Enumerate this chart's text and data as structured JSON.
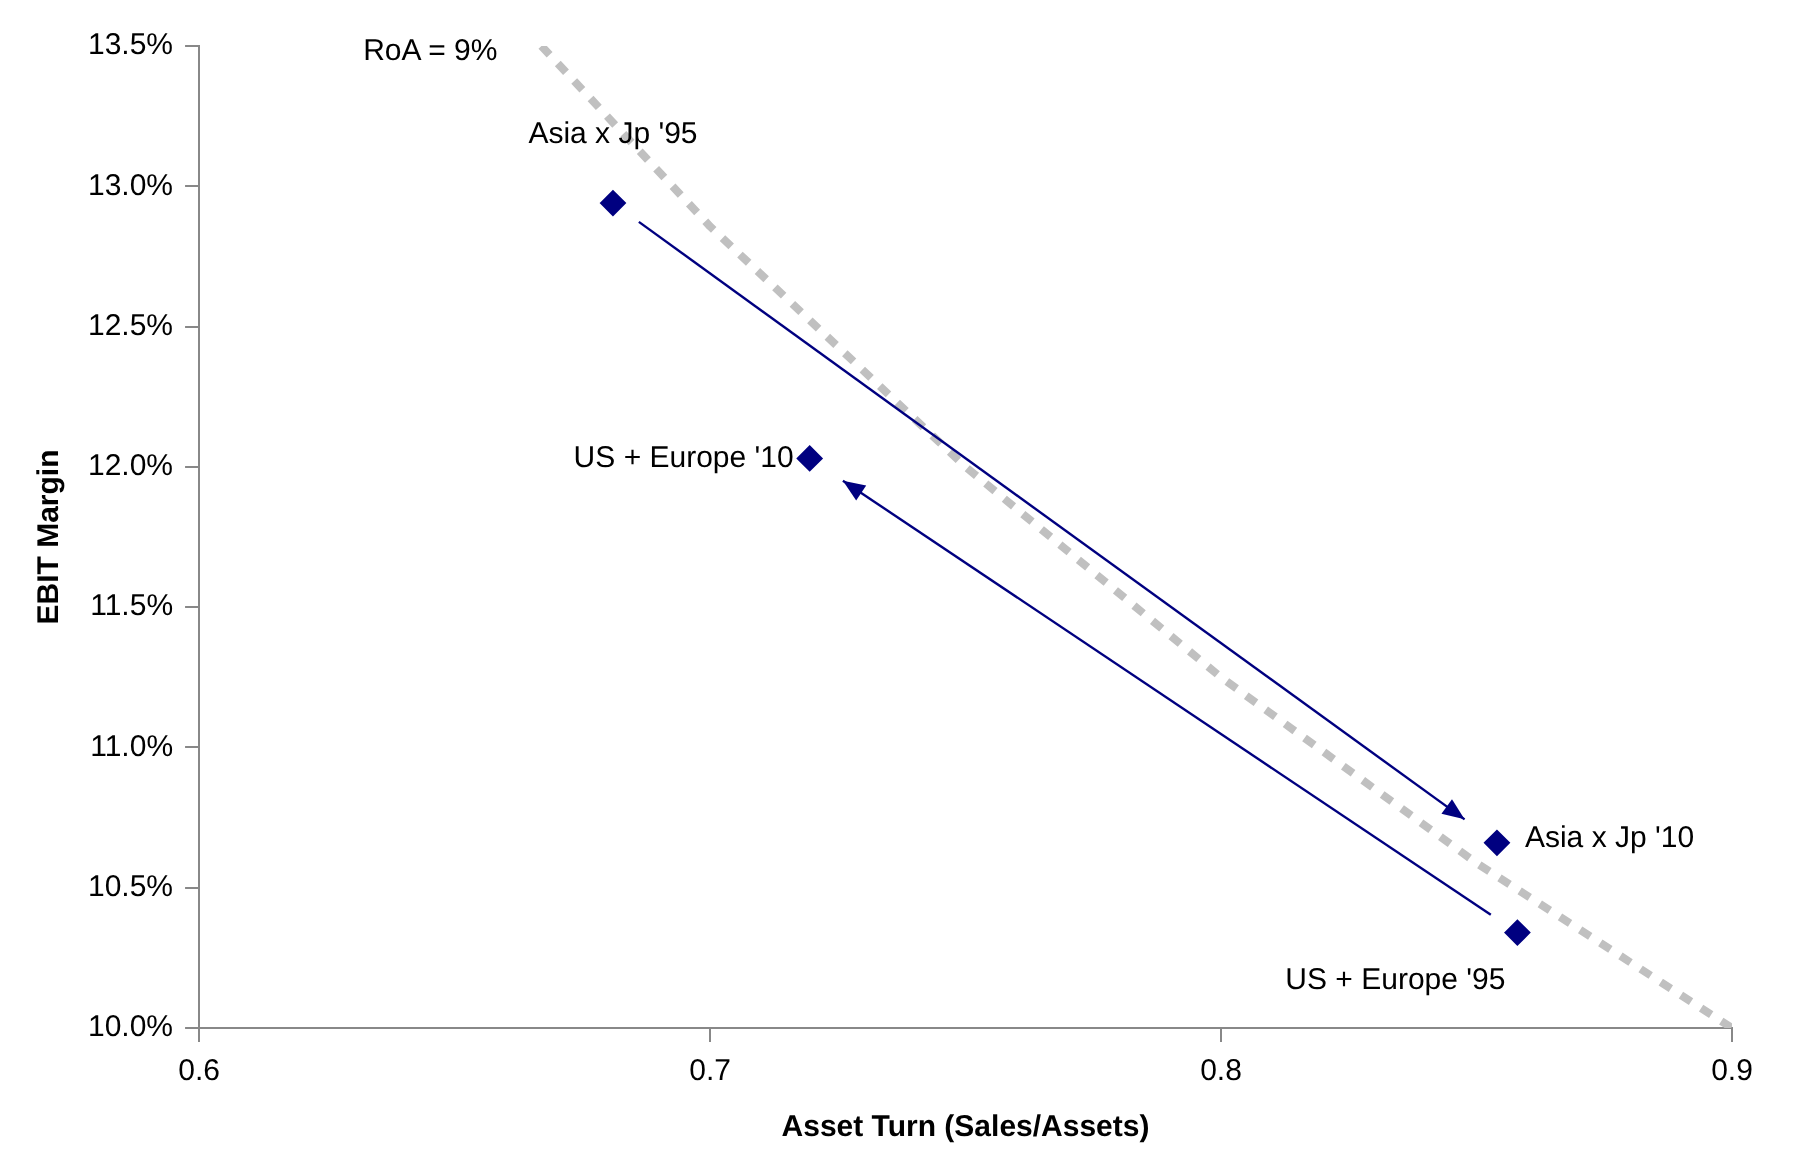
{
  "chart_data": {
    "type": "scatter",
    "xlabel": "Asset Turn (Sales/Assets)",
    "ylabel": "EBIT Margin",
    "series": [
      {
        "type": "scatter",
        "color": "#000080",
        "marker": "diamond",
        "x": [
          0.681,
          0.7195,
          0.854,
          0.858
        ],
        "values": [
          12.94,
          12.03,
          10.66,
          10.34
        ]
      },
      {
        "type": "line",
        "name": "RoA = 9%",
        "color": "#c0c0c0",
        "line_style": "dashed",
        "marker": "none",
        "x": [
          0.667,
          0.7,
          0.75,
          0.8,
          0.85,
          0.9
        ],
        "values": [
          13.5,
          12.857,
          12,
          11.25,
          10.588,
          10
        ]
      }
    ],
    "annotations": [
      {
        "text": "Asia x Jp '95",
        "x": 0.681,
        "y": 12.94
      },
      {
        "text": "US + Europe '10",
        "x": 0.7195,
        "y": 12.03
      },
      {
        "text": "Asia x Jp '10",
        "x": 0.854,
        "y": 10.66
      },
      {
        "text": "US + Europe '95",
        "x": 0.858,
        "y": 10.34
      }
    ],
    "xlim": [
      0.6,
      0.9
    ],
    "xticks": [
      0.6,
      0.7,
      0.8,
      0.9
    ],
    "ylim": [
      10,
      13.5
    ],
    "yticks": [
      {
        "value": 10,
        "label": "10.0%"
      },
      {
        "value": 10.5,
        "label": "10.5%"
      },
      {
        "value": 11,
        "label": "11.0%"
      },
      {
        "value": 11.5,
        "label": "11.5%"
      },
      {
        "value": 12,
        "label": "12.0%"
      },
      {
        "value": 12.5,
        "label": "12.5%"
      },
      {
        "value": 13,
        "label": "13.0%"
      },
      {
        "value": 13.5,
        "label": "13.5%"
      }
    ],
    "grid": false,
    "legend": false
  }
}
